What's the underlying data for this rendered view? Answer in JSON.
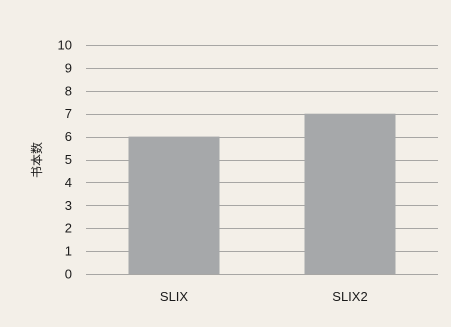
{
  "chart_data": {
    "type": "bar",
    "title": "",
    "xlabel": "",
    "ylabel": "书本数",
    "categories": [
      "SLIX",
      "SLIX2"
    ],
    "values": [
      6,
      7
    ],
    "ylim": [
      0,
      10
    ],
    "yticks": [
      0,
      1,
      2,
      3,
      4,
      5,
      6,
      7,
      8,
      9,
      10
    ],
    "grid": true,
    "legend": "none",
    "colors": {
      "background": "#f3efe8",
      "bar": "#a6a8aa",
      "grid": "#8e8e8e",
      "text": "#1a1a1a"
    }
  }
}
